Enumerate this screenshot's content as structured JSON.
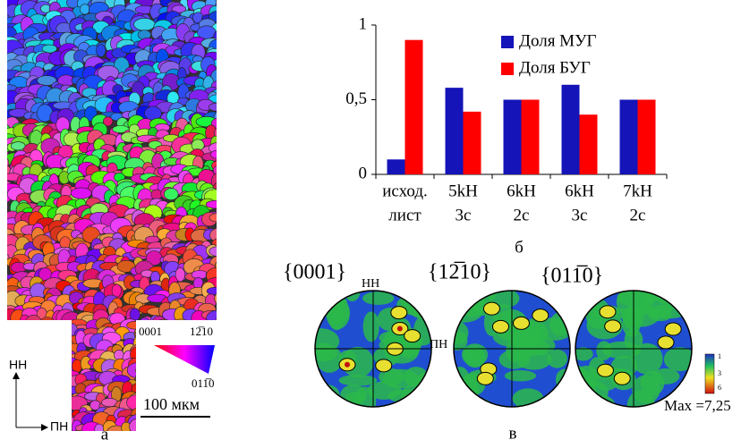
{
  "chart_data": {
    "type": "bar",
    "categories": [
      [
        "исход.",
        "лист"
      ],
      [
        "5kH",
        "3c"
      ],
      [
        "6kH",
        "2c"
      ],
      [
        "6kH",
        "3c"
      ],
      [
        "7kH",
        "2c"
      ]
    ],
    "series": [
      {
        "name": "Доля МУГ",
        "color": "#1414b8",
        "values": [
          0.1,
          0.58,
          0.5,
          0.6,
          0.5
        ]
      },
      {
        "name": "Доля БУГ",
        "color": "#ff0000",
        "values": [
          0.9,
          0.42,
          0.5,
          0.4,
          0.5
        ]
      }
    ],
    "ylim": [
      0,
      1
    ],
    "yticks": [
      0,
      {
        "value": 0.5,
        "label": "0,5"
      },
      1
    ],
    "legend": "upper right"
  },
  "panel_a": {
    "label": "а",
    "axis_up": "НН",
    "axis_right": "ПН",
    "scale_bar": "100 мкм",
    "ipf_key": [
      "0001",
      "12̅10",
      "011̅0"
    ]
  },
  "panel_b": {
    "label": "б"
  },
  "panel_c": {
    "label": "в",
    "titles": [
      "{0001}",
      "{12̅10}",
      "{011̅0}"
    ],
    "axis_up": "НН",
    "axis_right": "ПН",
    "colorbar": [
      "1",
      "3",
      "6"
    ],
    "max": "Max =7,25"
  }
}
